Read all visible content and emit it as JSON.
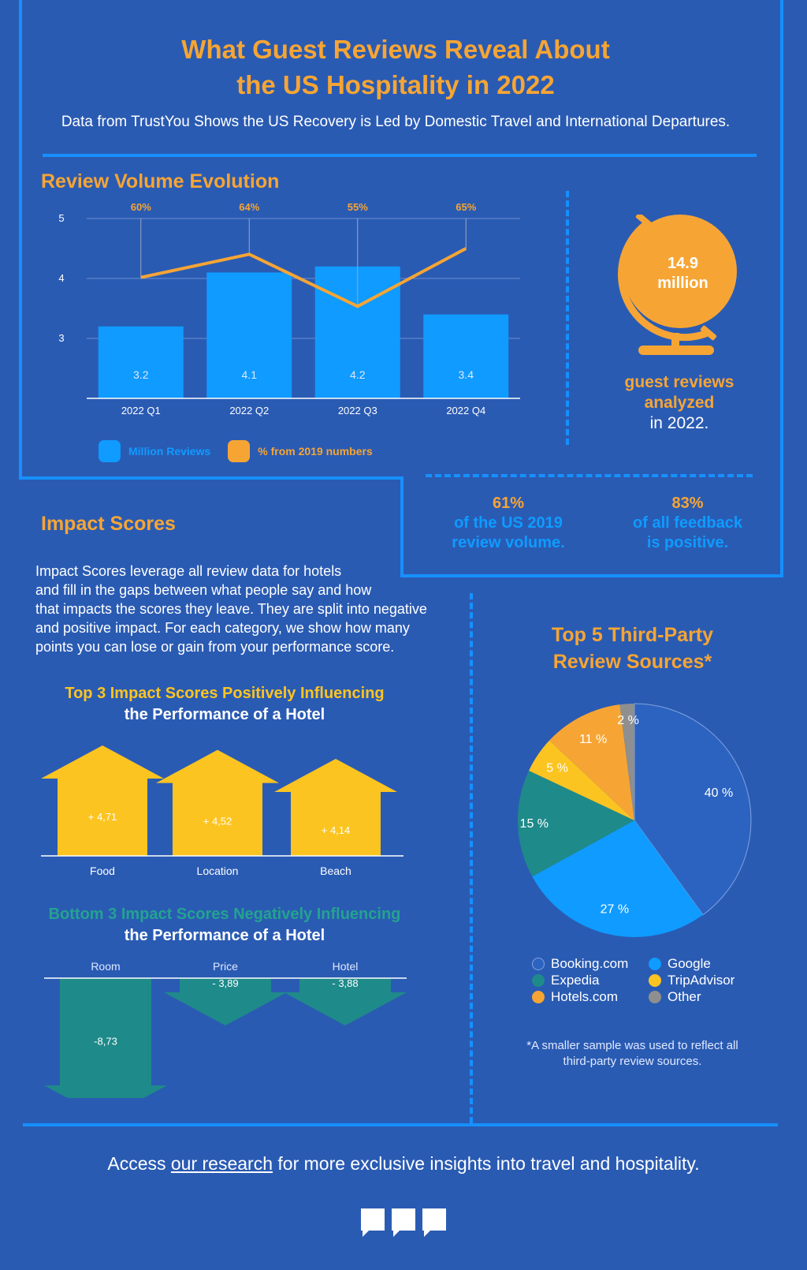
{
  "header": {
    "title_line1": "What Guest Reviews Reveal About",
    "title_line2": "the US Hospitality in 2022",
    "subtitle": "Data from TrustYou Shows the US Recovery is Led by Domestic Travel and International Departures."
  },
  "review_volume": {
    "heading": "Review Volume Evolution",
    "legend_bars": "Million Reviews",
    "legend_line": "% from 2019 numbers"
  },
  "chart_data": [
    {
      "type": "bar",
      "title": "Review Volume Evolution",
      "categories": [
        "2022 Q1",
        "2022 Q2",
        "2022 Q3",
        "2022 Q4"
      ],
      "series": [
        {
          "name": "Million Reviews",
          "type": "bar",
          "values": [
            3.2,
            4.1,
            4.2,
            3.4
          ],
          "labels": [
            "3.2",
            "4.1",
            "4.2",
            "3.4"
          ]
        },
        {
          "name": "% from 2019 numbers",
          "type": "line",
          "values": [
            60,
            64,
            55,
            65
          ],
          "labels": [
            "60%",
            "64%",
            "55%",
            "65%"
          ]
        }
      ],
      "yticks": [
        "5",
        "4",
        "3"
      ],
      "ylim": [
        2.0,
        5.0
      ],
      "grid": true,
      "legend_position": "bottom",
      "colors": {
        "bar": "#0f9bff",
        "line": "#f6a534"
      }
    },
    {
      "type": "bar",
      "title": "Top 3 Impact Scores Positively Influencing the Performance of a Hotel",
      "categories": [
        "Food",
        "Location",
        "Beach"
      ],
      "values": [
        4.71,
        4.52,
        4.14
      ],
      "labels": [
        "+ 4,71",
        "+ 4,52",
        "+ 4,14"
      ],
      "color": "#fcc421"
    },
    {
      "type": "bar",
      "title": "Bottom 3 Impact Scores Negatively Influencing the Performance of a Hotel",
      "categories": [
        "Room",
        "Price",
        "Hotel"
      ],
      "values": [
        -8.73,
        -3.89,
        -3.88
      ],
      "labels": [
        "-8,73",
        "- 3,89",
        "- 3,88"
      ],
      "color": "#1f8a8a"
    },
    {
      "type": "pie",
      "title": "Top 5 Third-Party Review Sources*",
      "slices": [
        {
          "name": "Booking.com",
          "value": 40,
          "label": "40 %",
          "color": "#2c63c0"
        },
        {
          "name": "Google",
          "value": 27,
          "label": "27 %",
          "color": "#0f9bff"
        },
        {
          "name": "Expedia",
          "value": 15,
          "label": "15 %",
          "color": "#1f8a8a"
        },
        {
          "name": "TripAdvisor",
          "value": 5,
          "label": "5 %",
          "color": "#fcc421"
        },
        {
          "name": "Hotels.com",
          "value": 11,
          "label": "11 %",
          "color": "#f6a534"
        },
        {
          "name": "Other",
          "value": 2,
          "label": "2 %",
          "color": "#8f8f8f"
        }
      ],
      "legend_position": "bottom"
    }
  ],
  "globe_stat": {
    "value_line1": "14.9",
    "value_line2": "million",
    "caption_line1": "guest reviews",
    "caption_line2": "analyzed",
    "caption_line3": "in 2022."
  },
  "stats": [
    {
      "value": "61%",
      "line1": "of the US 2019",
      "line2": "review volume."
    },
    {
      "value": "83%",
      "line1": "of all feedback",
      "line2": "is positive."
    }
  ],
  "impact": {
    "heading": "Impact Scores",
    "description": [
      "Impact Scores leverage all review data for hotels",
      "and fill in the gaps between what people say and how",
      "that impacts the scores they leave. They are split into negative",
      "and positive impact. For each category, we show how many",
      "points you can lose or gain from your performance score."
    ],
    "positive_line1": "Top 3 Impact Scores Positively Influencing",
    "positive_line2": "the Performance of a Hotel",
    "negative_line1": "Bottom 3 Impact Scores Negatively Influencing",
    "negative_line2": "the Performance of a Hotel"
  },
  "sources": {
    "heading_line1": "Top 5 Third-Party",
    "heading_line2": "Review Sources*",
    "legend": [
      {
        "name": "Booking.com",
        "color": "#2c63c0"
      },
      {
        "name": "Google",
        "color": "#0f9bff"
      },
      {
        "name": "Expedia",
        "color": "#1f8a8a"
      },
      {
        "name": "TripAdvisor",
        "color": "#fcc421"
      },
      {
        "name": "Hotels.com",
        "color": "#f6a534"
      },
      {
        "name": "Other",
        "color": "#8f8f8f"
      }
    ],
    "footnote_line1": "*A smaller sample was used to reflect all",
    "footnote_line2": "third-party review sources."
  },
  "footer": {
    "pre": "Access ",
    "link": "our research",
    "post": " for more exclusive insights into travel and hospitality."
  },
  "colors": {
    "background": "#2a5bb3",
    "frame": "#1690ff",
    "accent_orange": "#f6a534",
    "accent_yellow": "#fcc421",
    "accent_teal": "#23a38f"
  },
  "icons": [
    "globe-icon",
    "speech-bubble-logo-icon"
  ]
}
